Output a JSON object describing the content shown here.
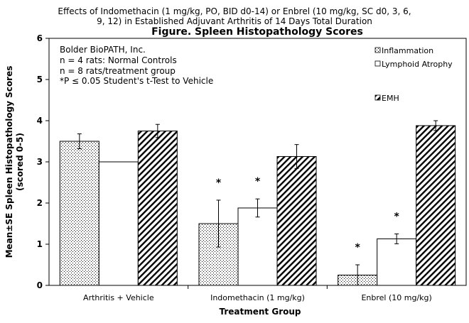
{
  "chart_data": {
    "type": "bar",
    "title_line1": "Effects of Indomethacin (1 mg/kg, PO, BID d0-14) or Enbrel (10 mg/kg, SC d0, 3, 6,",
    "title_line2": "9, 12) in Established Adjuvant Arthritis of 14 Days Total Duration",
    "title": "Figure. Spleen Histopathology Scores",
    "xlabel": "Treatment Group",
    "ylabel_line1": "Mean±SE Spleen Histopathology Scores",
    "ylabel_line2": "(scored 0-5)",
    "ylim": [
      0,
      6
    ],
    "yticks": [
      "0",
      "1",
      "2",
      "3",
      "4",
      "5",
      "6"
    ],
    "categories": [
      "Arthritis + Vehicle",
      "Indomethacin (1 mg/kg)",
      "Enbrel (10 mg/kg)"
    ],
    "series": [
      {
        "name": "Inflammation",
        "pattern": "dots",
        "values": [
          3.5,
          1.5,
          0.25
        ],
        "errors": [
          0.18,
          0.57,
          0.25
        ],
        "significant": [
          false,
          true,
          true
        ]
      },
      {
        "name": "Lymphoid Atrophy",
        "pattern": "none",
        "values": [
          3.0,
          1.88,
          1.13
        ],
        "errors": [
          0.0,
          0.22,
          0.12
        ],
        "significant": [
          false,
          true,
          true
        ]
      },
      {
        "name": "EMH",
        "pattern": "hatch",
        "values": [
          3.75,
          3.13,
          3.88
        ],
        "errors": [
          0.16,
          0.29,
          0.12
        ],
        "significant": [
          false,
          false,
          false
        ]
      }
    ],
    "significance_marker": "*",
    "notes": [
      "Bolder BioPATH, Inc.",
      "n = 4 rats: Normal Controls",
      "n = 8 rats/treatment group",
      "*P ≤ 0.05 Student's t-Test to Vehicle"
    ],
    "legend_placement": "top-right",
    "grid": false
  }
}
